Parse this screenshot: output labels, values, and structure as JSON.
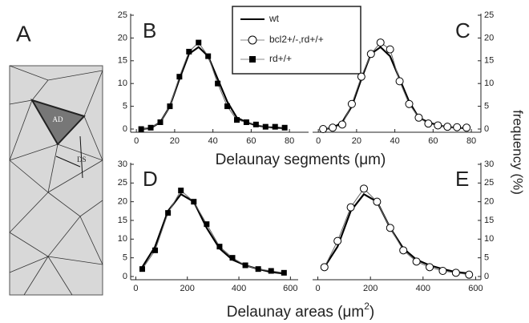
{
  "panel_a": {
    "label": "A",
    "annotations": [
      "AD",
      "DS"
    ]
  },
  "chart_data": [
    {
      "type": "line",
      "title": "B",
      "xlabel": "Delaunay segments (μm)",
      "x": [
        2.5,
        7.5,
        12.5,
        17.5,
        22.5,
        27.5,
        32.5,
        37.5,
        42.5,
        47.5,
        52.5,
        57.5,
        62.5,
        67.5,
        72.5,
        77.5
      ],
      "series": [
        {
          "name": "wt",
          "color": "#000000",
          "marker": "line",
          "values": [
            0,
            0.2,
            1.5,
            5,
            11,
            16.5,
            18,
            16,
            11,
            6,
            2.5,
            1.5,
            0.8,
            0.5,
            0.3,
            0.2
          ]
        },
        {
          "name": "rd+/+",
          "color": "#000000",
          "marker": "square",
          "values": [
            0,
            0.3,
            1.5,
            5,
            11.5,
            17,
            19,
            16,
            10,
            5,
            2,
            1.5,
            1,
            0.5,
            0.5,
            0.3
          ]
        }
      ],
      "xlim": [
        -3,
        90
      ],
      "xticks": [
        0,
        20,
        40,
        60,
        80
      ],
      "ylim": [
        0,
        25
      ],
      "yticks": [
        0,
        5,
        10,
        15,
        20,
        25
      ],
      "yaxis": "left",
      "grid": false
    },
    {
      "type": "line",
      "title": "C",
      "ylabel": "frequency (%)",
      "x": [
        2.5,
        7.5,
        12.5,
        17.5,
        22.5,
        27.5,
        32.5,
        37.5,
        42.5,
        47.5,
        52.5,
        57.5,
        62.5,
        67.5,
        72.5,
        77.5
      ],
      "series": [
        {
          "name": "wt",
          "color": "#000000",
          "marker": "line",
          "values": [
            0,
            0.2,
            1.5,
            5,
            11,
            16.5,
            18,
            16,
            11,
            6,
            2.5,
            1.5,
            0.8,
            0.5,
            0.3,
            0.2
          ]
        },
        {
          "name": "bcl2+/-,rd+/+",
          "color": "#000000",
          "marker": "circle",
          "values": [
            0,
            0.3,
            1,
            5.5,
            11.5,
            16.5,
            19,
            17.5,
            10.5,
            5.5,
            2.5,
            1.2,
            0.8,
            0.5,
            0.4,
            0.3
          ]
        }
      ],
      "xlim": [
        -3,
        85
      ],
      "xticks": [
        0,
        20,
        40,
        60,
        80
      ],
      "ylim": [
        0,
        25
      ],
      "yticks": [
        0,
        5,
        10,
        15,
        20,
        25
      ],
      "yaxis": "right",
      "grid": false
    },
    {
      "type": "line",
      "title": "D",
      "xlabel": "Delaunay areas (μm",
      "xlabel_sup": "2",
      "xlabel_end": ")",
      "x": [
        25,
        75,
        125,
        175,
        225,
        275,
        325,
        375,
        425,
        475,
        525,
        575
      ],
      "series": [
        {
          "name": "wt",
          "color": "#000000",
          "marker": "line",
          "values": [
            2.5,
            8,
            17.5,
            22,
            20,
            13,
            7.5,
            4.5,
            3,
            2,
            1.2,
            0.8
          ]
        },
        {
          "name": "rd+/+",
          "color": "#000000",
          "marker": "square",
          "values": [
            2,
            7,
            17,
            23,
            20,
            14,
            8,
            5,
            3,
            2,
            1.5,
            1
          ]
        }
      ],
      "xlim": [
        -20,
        630
      ],
      "xticks": [
        0,
        200,
        400,
        600
      ],
      "ylim": [
        0,
        30
      ],
      "yticks": [
        0,
        5,
        10,
        15,
        20,
        25,
        30
      ],
      "yaxis": "left",
      "grid": false
    },
    {
      "type": "line",
      "title": "E",
      "x": [
        25,
        75,
        125,
        175,
        225,
        275,
        325,
        375,
        425,
        475,
        525,
        575
      ],
      "series": [
        {
          "name": "wt",
          "color": "#000000",
          "marker": "line",
          "values": [
            2.5,
            8,
            17.5,
            22,
            20,
            13,
            7.5,
            4.5,
            3,
            2,
            1.2,
            0.8
          ]
        },
        {
          "name": "bcl2+/-,rd+/+",
          "color": "#000000",
          "marker": "circle",
          "values": [
            2.5,
            9.5,
            18.5,
            23.5,
            20,
            13,
            7,
            4,
            2.5,
            1.5,
            1,
            0.5
          ]
        }
      ],
      "xlim": [
        -20,
        620
      ],
      "xticks": [
        0,
        200,
        400,
        600
      ],
      "ylim": [
        0,
        30
      ],
      "yticks": [
        0,
        5,
        10,
        15,
        20,
        25,
        30
      ],
      "yaxis": "right",
      "grid": false
    }
  ]
}
